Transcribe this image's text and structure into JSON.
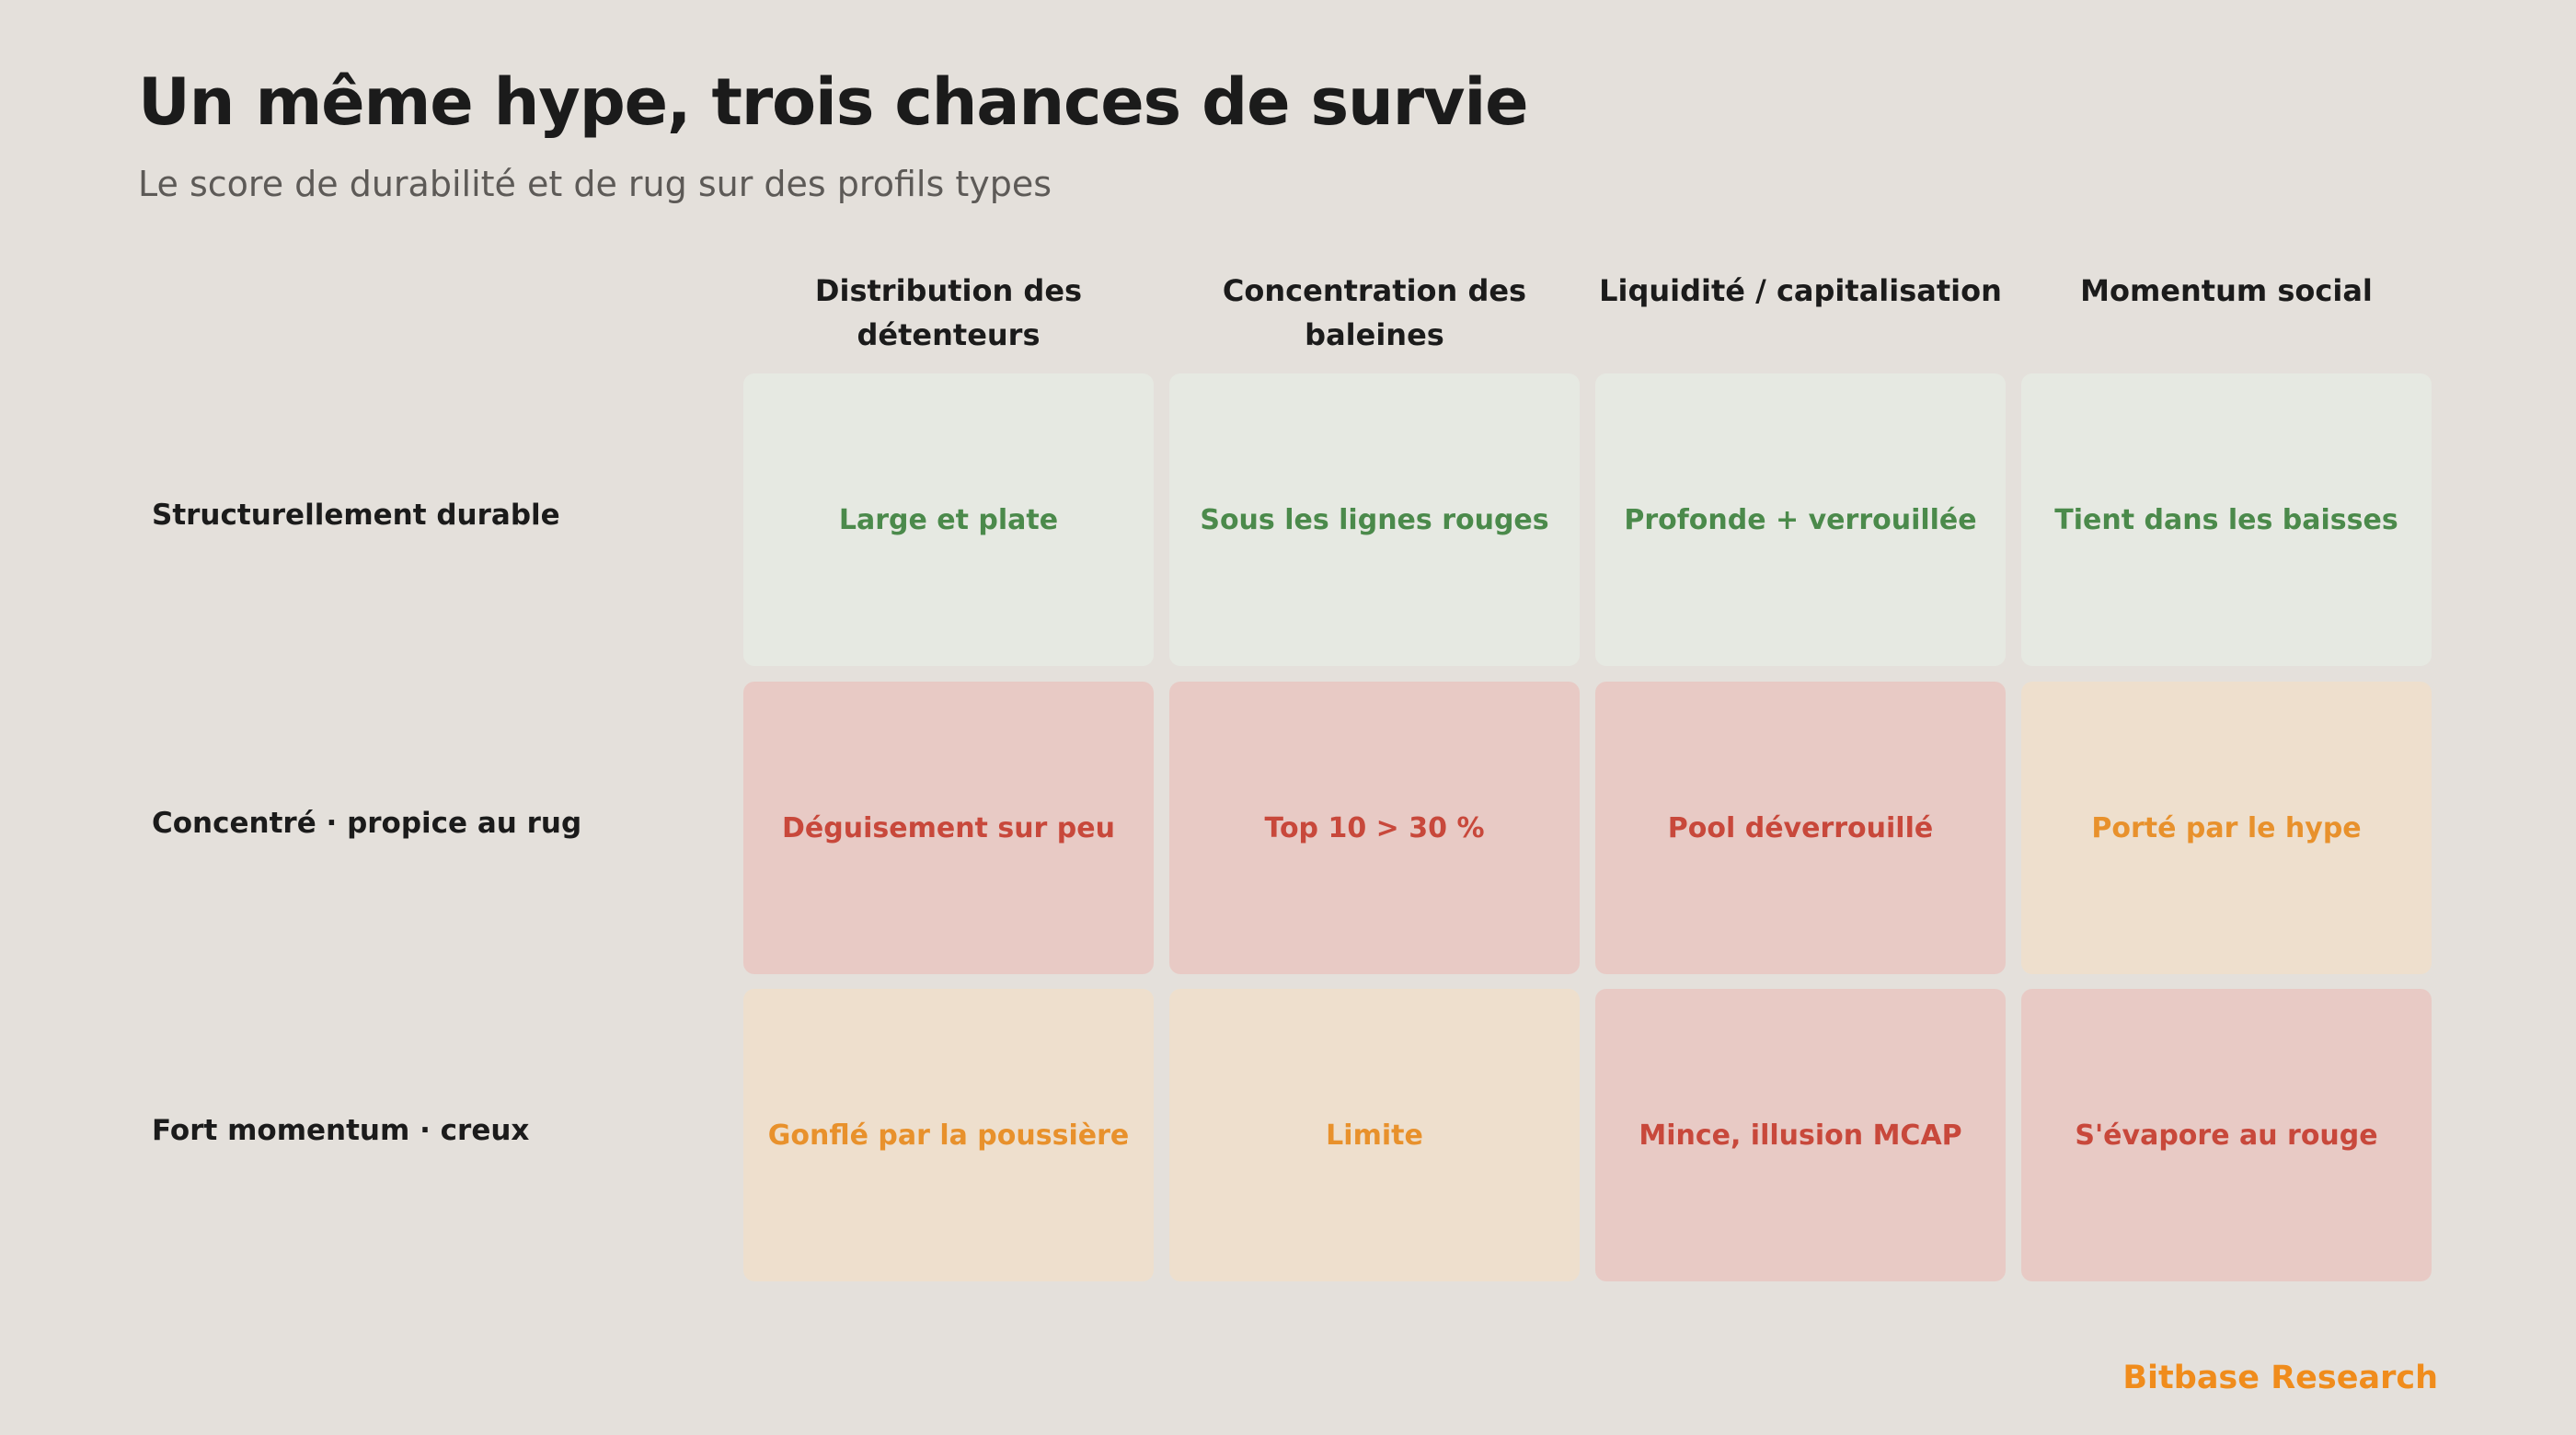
{
  "title": "Un même hype, trois chances de survie",
  "subtitle": "Le score de durabilité et de rug sur des profils types",
  "columns": [
    "Distribution des détenteurs",
    "Concentration des baleines",
    "Liquidité / capitalisation",
    "Momentum social"
  ],
  "rows": [
    {
      "label": "Structurellement durable",
      "cells": [
        {
          "text": "Large et plate",
          "status": "good"
        },
        {
          "text": "Sous les lignes rouges",
          "status": "good"
        },
        {
          "text": "Profonde + verrouillée",
          "status": "good"
        },
        {
          "text": "Tient dans les baisses",
          "status": "good"
        }
      ]
    },
    {
      "label": "Concentré · propice au rug",
      "cells": [
        {
          "text": "Déguisement sur peu",
          "status": "bad"
        },
        {
          "text": "Top 10 > 30 %",
          "status": "bad"
        },
        {
          "text": "Pool déverrouillé",
          "status": "bad"
        },
        {
          "text": "Porté par le hype",
          "status": "warn"
        }
      ]
    },
    {
      "label": "Fort momentum · creux",
      "cells": [
        {
          "text": "Gonflé par la poussière",
          "status": "warn"
        },
        {
          "text": "Limite",
          "status": "warn"
        },
        {
          "text": "Mince, illusion MCAP",
          "status": "bad"
        },
        {
          "text": "S'évapore au rouge",
          "status": "bad"
        }
      ]
    }
  ],
  "status_colors": {
    "good": {
      "background": "#e6e9e2",
      "text": "#4b8a4b"
    },
    "bad": {
      "background": "#e8cac5",
      "text": "#c8483b"
    },
    "warn": {
      "background": "#eedfcd",
      "text": "#e8912c"
    }
  },
  "footer": "Bitbase Research"
}
